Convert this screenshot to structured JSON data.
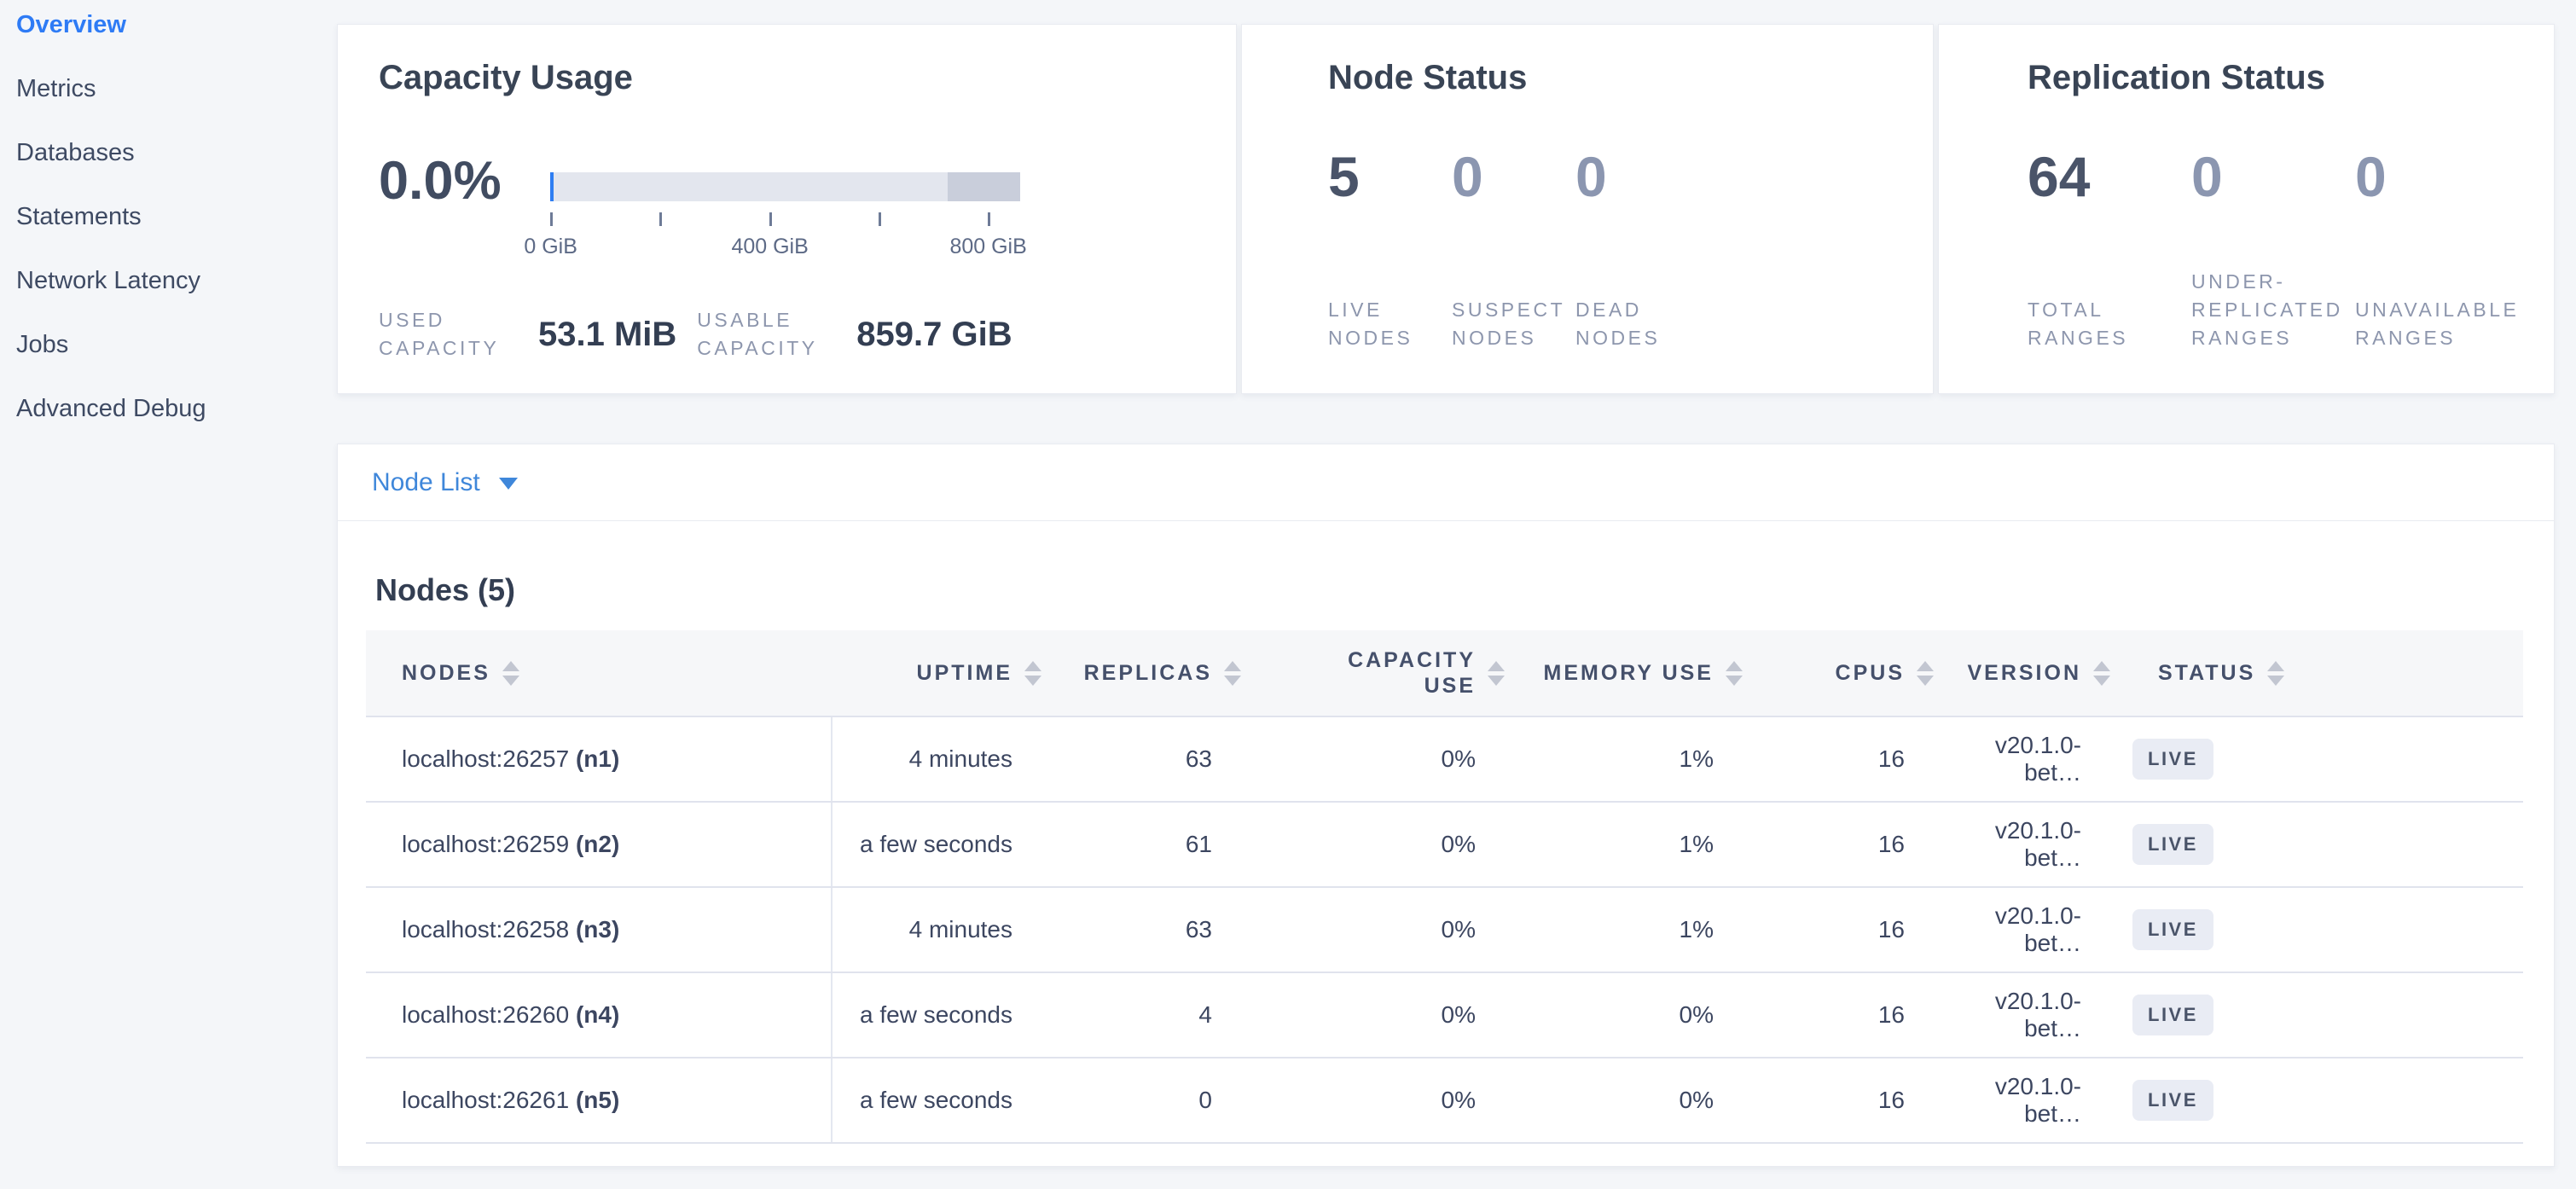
{
  "colors": {
    "accent_blue": "#2e7bf5",
    "link_blue": "#3f87da",
    "title_color": "#394455",
    "number_emph": "#4a5469",
    "number_dim": "#8b96b0",
    "label_color": "#8d96ad",
    "value_color": "#333e52",
    "bar_bg": "#e3e6ee",
    "bar_other": "#c9cedb",
    "bar_used": "#2f7ef2",
    "tick_color": "#6e7b97",
    "tick_label_color": "#5d6a86",
    "header_text": "#45506b",
    "cell_text": "#3c4660",
    "row_border": "#e0e3ed",
    "divider": "#e4e7f0",
    "thead_bg": "#f6f7f9",
    "badge_bg": "#e9ecf4",
    "badge_text": "#4a5469",
    "sort_icon": "#c2c6d1",
    "page_bg": "#f4f6f9",
    "card_border": "#e9ebf1",
    "sidebar_text": "#3e4a63"
  },
  "sidebar": {
    "items": [
      {
        "label": "Overview",
        "active": true
      },
      {
        "label": "Metrics",
        "active": false
      },
      {
        "label": "Databases",
        "active": false
      },
      {
        "label": "Statements",
        "active": false
      },
      {
        "label": "Network Latency",
        "active": false
      },
      {
        "label": "Jobs",
        "active": false
      },
      {
        "label": "Advanced Debug",
        "active": false
      }
    ]
  },
  "capacity_card": {
    "title": "Capacity Usage",
    "percent": "0.0%",
    "bar": {
      "total_gib": 860,
      "other_start_gib": 728,
      "ticks": [
        {
          "gib": 0,
          "label": "0 GiB"
        },
        {
          "gib": 200,
          "label": ""
        },
        {
          "gib": 400,
          "label": "400 GiB"
        },
        {
          "gib": 600,
          "label": ""
        },
        {
          "gib": 800,
          "label": "800 GiB"
        }
      ]
    },
    "stats": [
      {
        "label": "USED CAPACITY",
        "value": "53.1 MiB"
      },
      {
        "label": "USABLE CAPACITY",
        "value": "859.7 GiB"
      }
    ]
  },
  "node_status_card": {
    "title": "Node Status",
    "stats": [
      {
        "value": "5",
        "label": "LIVE NODES",
        "emph": true
      },
      {
        "value": "0",
        "label": "SUSPECT NODES",
        "emph": false
      },
      {
        "value": "0",
        "label": "DEAD NODES",
        "emph": false
      }
    ]
  },
  "replication_card": {
    "title": "Replication Status",
    "stats": [
      {
        "value": "64",
        "label": "TOTAL RANGES",
        "emph": true
      },
      {
        "value": "0",
        "label": "UNDER-REPLICATED RANGES",
        "emph": false
      },
      {
        "value": "0",
        "label": "UNAVAILABLE RANGES",
        "emph": false
      }
    ]
  },
  "node_list": {
    "dropdown_label": "Node List",
    "table_title": "Nodes (5)",
    "columns": [
      {
        "key": "node",
        "label": "NODES",
        "align": "left"
      },
      {
        "key": "uptime",
        "label": "UPTIME",
        "align": "right"
      },
      {
        "key": "replicas",
        "label": "REPLICAS",
        "align": "right"
      },
      {
        "key": "capacity_use",
        "label": "CAPACITY USE",
        "align": "right",
        "wrap": true
      },
      {
        "key": "memory_use",
        "label": "MEMORY USE",
        "align": "right"
      },
      {
        "key": "cpus",
        "label": "CPUS",
        "align": "right"
      },
      {
        "key": "version",
        "label": "VERSION",
        "align": "right"
      },
      {
        "key": "status",
        "label": "STATUS",
        "align": "left"
      }
    ],
    "rows": [
      {
        "node": "localhost:26257",
        "id": "(n1)",
        "uptime": "4 minutes",
        "replicas": "63",
        "capacity_use": "0%",
        "memory_use": "1%",
        "cpus": "16",
        "version": "v20.1.0-bet…",
        "status": "LIVE"
      },
      {
        "node": "localhost:26259",
        "id": "(n2)",
        "uptime": "a few seconds",
        "replicas": "61",
        "capacity_use": "0%",
        "memory_use": "1%",
        "cpus": "16",
        "version": "v20.1.0-bet…",
        "status": "LIVE"
      },
      {
        "node": "localhost:26258",
        "id": "(n3)",
        "uptime": "4 minutes",
        "replicas": "63",
        "capacity_use": "0%",
        "memory_use": "1%",
        "cpus": "16",
        "version": "v20.1.0-bet…",
        "status": "LIVE"
      },
      {
        "node": "localhost:26260",
        "id": "(n4)",
        "uptime": "a few seconds",
        "replicas": "4",
        "capacity_use": "0%",
        "memory_use": "0%",
        "cpus": "16",
        "version": "v20.1.0-bet…",
        "status": "LIVE"
      },
      {
        "node": "localhost:26261",
        "id": "(n5)",
        "uptime": "a few seconds",
        "replicas": "0",
        "capacity_use": "0%",
        "memory_use": "0%",
        "cpus": "16",
        "version": "v20.1.0-bet…",
        "status": "LIVE"
      }
    ]
  }
}
